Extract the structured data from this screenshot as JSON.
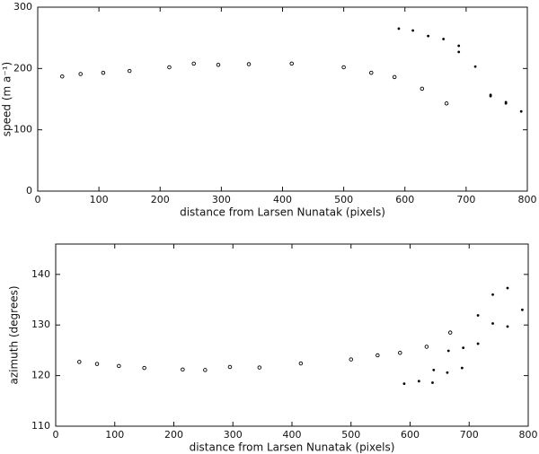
{
  "chart_data": [
    {
      "type": "scatter",
      "xlabel": "distance from Larsen Nunatak (pixels)",
      "ylabel": "speed (m a⁻¹)",
      "xlim": [
        0,
        800
      ],
      "xticks": [
        0,
        100,
        200,
        300,
        400,
        500,
        600,
        700,
        800
      ],
      "ylim": [
        0,
        300
      ],
      "yticks": [
        0,
        100,
        200,
        300
      ],
      "series": [
        {
          "marker": "open",
          "color": "#000000",
          "x": [
            40,
            70,
            107,
            150,
            215,
            255,
            295,
            345,
            415,
            500,
            545,
            583,
            628,
            668
          ],
          "values": [
            187,
            191,
            193,
            196,
            202,
            208,
            206,
            207,
            208,
            202,
            193,
            186,
            167,
            143
          ]
        },
        {
          "marker": "dot",
          "color": "#000000",
          "x": [
            590,
            613,
            638,
            663,
            688,
            688,
            715,
            740,
            740,
            765,
            765,
            790
          ],
          "values": [
            265,
            262,
            253,
            248,
            237,
            227,
            203,
            157,
            155,
            145,
            143,
            130
          ]
        }
      ]
    },
    {
      "type": "scatter",
      "xlabel": "distance from Larsen Nunatak (pixels)",
      "ylabel": "azimuth (degrees)",
      "xlim": [
        0,
        800
      ],
      "xticks": [
        0,
        100,
        200,
        300,
        400,
        500,
        600,
        700,
        800
      ],
      "ylim": [
        110,
        146
      ],
      "yticks": [
        110,
        120,
        130,
        140
      ],
      "series": [
        {
          "marker": "open",
          "color": "#000000",
          "x": [
            40,
            70,
            107,
            150,
            215,
            253,
            295,
            345,
            415,
            500,
            545,
            583,
            628,
            668
          ],
          "values": [
            122.7,
            122.3,
            121.9,
            121.5,
            121.2,
            121.1,
            121.7,
            121.6,
            122.4,
            123.2,
            124.0,
            124.5,
            125.7,
            128.5
          ]
        },
        {
          "marker": "dot",
          "color": "#000000",
          "x": [
            590,
            615,
            638,
            640,
            663,
            665,
            688,
            690,
            715,
            715,
            740,
            740,
            765,
            765,
            790
          ],
          "values": [
            118.4,
            118.9,
            118.6,
            121.1,
            120.6,
            124.9,
            121.5,
            125.5,
            126.3,
            131.9,
            130.3,
            136.0,
            129.7,
            137.3,
            133.0
          ]
        }
      ]
    }
  ]
}
